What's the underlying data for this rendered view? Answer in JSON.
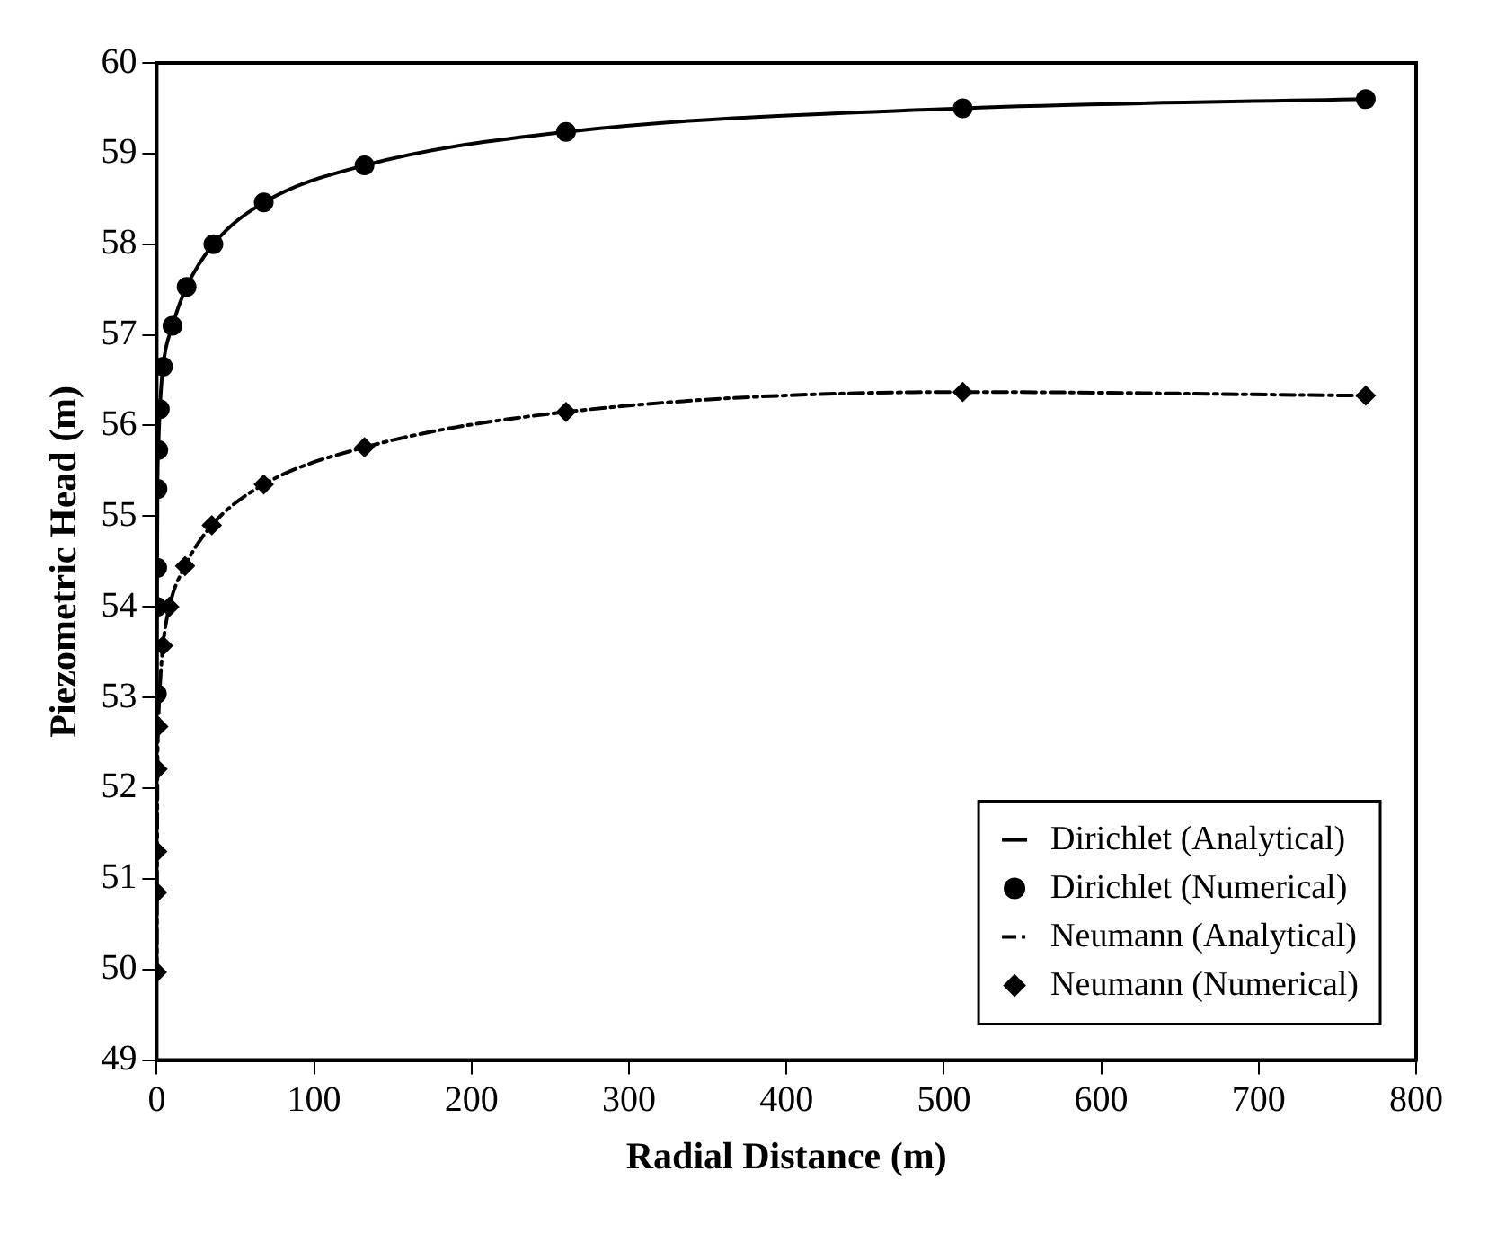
{
  "chart_data": {
    "type": "line",
    "xlabel": "Radial Distance (m)",
    "ylabel": "Piezometric Head (m)",
    "xlim": [
      0,
      800
    ],
    "xticks": [
      0,
      100,
      200,
      300,
      400,
      500,
      600,
      700,
      800
    ],
    "ylim": [
      49,
      60
    ],
    "yticks": [
      49,
      50,
      51,
      52,
      53,
      54,
      55,
      56,
      57,
      58,
      59,
      60
    ],
    "grid": false,
    "legend": "bottom right",
    "series": [
      {
        "name": "Dirichlet (Analytical)",
        "type": "line",
        "color": "#000000",
        "marker": "none",
        "line_style": "solid",
        "x": [
          0.1,
          0.2,
          0.3,
          0.5,
          1,
          2,
          4,
          10,
          19,
          36,
          68,
          132,
          260,
          512,
          768
        ],
        "values": [
          53.04,
          54.0,
          54.43,
          55.3,
          55.73,
          56.18,
          56.65,
          57.1,
          57.53,
          58.0,
          58.46,
          58.87,
          59.24,
          59.5,
          59.6
        ]
      },
      {
        "name": "Dirichlet (Numerical)",
        "type": "scatter",
        "color": "#000000",
        "marker": "circle",
        "x": [
          0.1,
          0.2,
          0.3,
          0.5,
          1,
          2,
          4,
          10,
          19,
          36,
          68,
          132,
          260,
          512,
          768
        ],
        "values": [
          53.04,
          54.0,
          54.43,
          55.3,
          55.73,
          56.18,
          56.65,
          57.1,
          57.53,
          58.0,
          58.46,
          58.87,
          59.24,
          59.5,
          59.6
        ]
      },
      {
        "name": "Neumann (Analytical)",
        "type": "line",
        "color": "#000000",
        "marker": "none",
        "line_style": "dashed",
        "x": [
          0.1,
          0.2,
          0.3,
          0.5,
          1,
          2,
          4,
          8,
          18,
          35,
          68,
          132,
          260,
          512,
          768
        ],
        "values": [
          49.97,
          50.85,
          51.3,
          52.21,
          52.68,
          53.1,
          53.57,
          54.0,
          54.45,
          54.9,
          55.35,
          55.76,
          56.15,
          56.37,
          56.33
        ]
      },
      {
        "name": "Neumann (Numerical)",
        "type": "scatter",
        "color": "#000000",
        "marker": "diamond",
        "x": [
          0.1,
          0.2,
          0.3,
          0.5,
          1,
          2,
          4,
          8,
          18,
          35,
          68,
          132,
          260,
          512,
          768
        ],
        "values": [
          49.97,
          50.85,
          51.3,
          52.21,
          52.68,
          null,
          53.57,
          54.0,
          54.45,
          54.9,
          55.35,
          55.76,
          56.15,
          56.37,
          56.33
        ]
      }
    ]
  }
}
